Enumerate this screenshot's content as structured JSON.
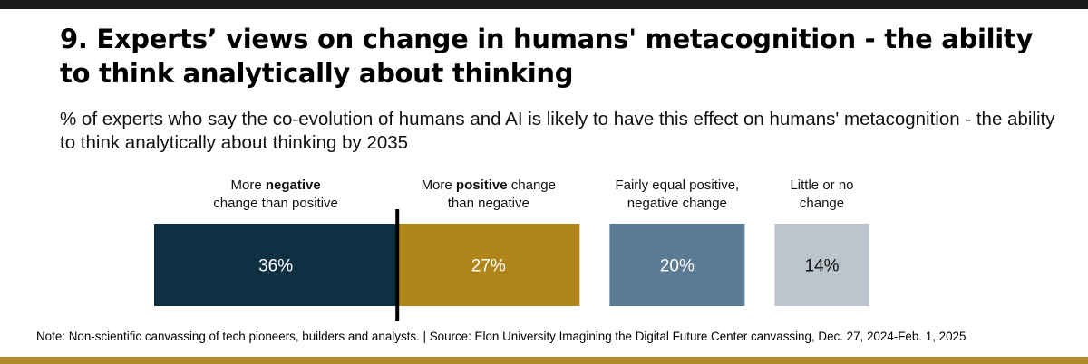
{
  "colors": {
    "top_band": "#1a1a1a",
    "bottom_band": "#b08a2a",
    "divider": "#000000"
  },
  "title": "9. Experts’ views on change in humans' metacognition - the ability to think analytically about thinking",
  "subtitle": "% of experts who say the co-evolution of humans and AI is likely to have this effect on humans' metacognition - the ability to think analytically about thinking by 2035",
  "note": "Note: Non-scientific canvassing of tech pioneers, builders and analysts. | Source: Elon University Imagining the Digital Future Center canvassing,  Dec. 27, 2024-Feb. 1, 2025",
  "chart_data": {
    "type": "bar",
    "orientation": "horizontal",
    "unit": "%",
    "grid": false,
    "categories": [
      {
        "key": "more-negative",
        "label_lines": [
          [
            {
              "text": "More ",
              "bold": false
            },
            {
              "text": "negative",
              "bold": true
            }
          ],
          [
            {
              "text": "change than positive",
              "bold": false
            }
          ]
        ],
        "value": 36,
        "value_label": "36%",
        "color": "#0f3043",
        "label_color": "#ffffff",
        "group": "stacked"
      },
      {
        "key": "more-positive",
        "label_lines": [
          [
            {
              "text": "More ",
              "bold": false
            },
            {
              "text": "positive",
              "bold": true
            },
            {
              "text": " change",
              "bold": false
            }
          ],
          [
            {
              "text": "than negative",
              "bold": false
            }
          ]
        ],
        "value": 27,
        "value_label": "27%",
        "color": "#b08519",
        "label_color": "#ffffff",
        "group": "stacked"
      },
      {
        "key": "fairly-equal",
        "label_lines": [
          [
            {
              "text": "Fairly equal positive,",
              "bold": false
            }
          ],
          [
            {
              "text": "negative change",
              "bold": false
            }
          ]
        ],
        "value": 20,
        "value_label": "20%",
        "color": "#5b7a94",
        "label_color": "#ffffff",
        "group": "separate"
      },
      {
        "key": "little-or-no",
        "label_lines": [
          [
            {
              "text": "Little or no",
              "bold": false
            }
          ],
          [
            {
              "text": "change",
              "bold": false
            }
          ]
        ],
        "value": 14,
        "value_label": "14%",
        "color": "#bcc5cd",
        "label_color": "#111111",
        "group": "separate"
      }
    ]
  }
}
